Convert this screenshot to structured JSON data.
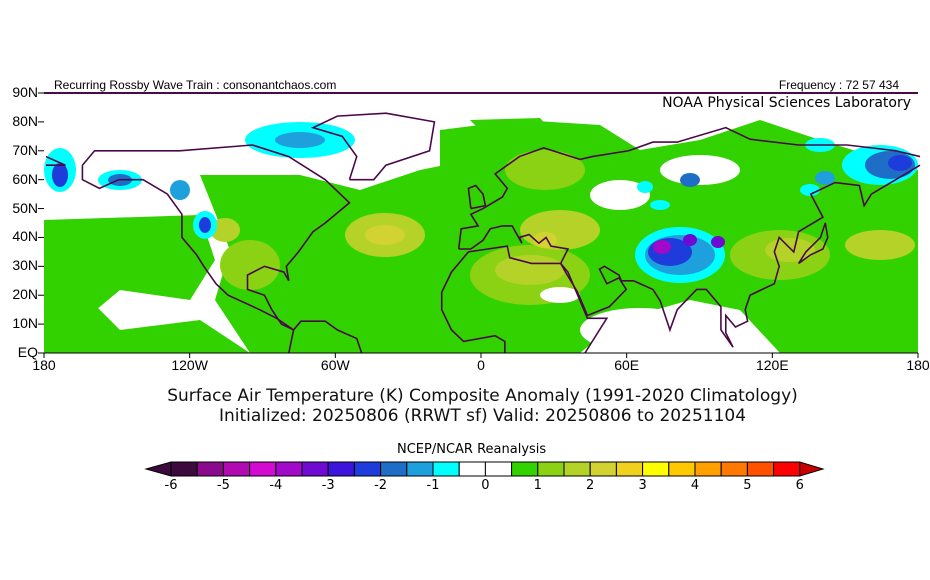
{
  "header": {
    "left_text": "Recurring Rossby Wave Train : consonantchaos.com",
    "right_text": "Frequency : 72 57 434",
    "lab_name": "NOAA Physical Sciences Laboratory"
  },
  "map": {
    "lat_labels": [
      "90N",
      "80N",
      "70N",
      "60N",
      "50N",
      "40N",
      "30N",
      "20N",
      "10N",
      "EQ"
    ],
    "lon_labels": [
      "180",
      "120W",
      "60W",
      "0",
      "60E",
      "120E",
      "180"
    ],
    "title_line1": "Surface Air Temperature (K) Composite Anomaly (1991-2020 Climatology)",
    "title_line2": "Initialized: 20250806 (RRWT sf) Valid: 20250806 to 20251104"
  },
  "colorbar": {
    "title": "NCEP/NCAR Reanalysis",
    "tick_labels": [
      "-6",
      "-5",
      "-4",
      "-3",
      "-2",
      "-1",
      "0",
      "1",
      "2",
      "3",
      "4",
      "5",
      "6"
    ],
    "colors": [
      "#3d0a3d",
      "#8b0a8b",
      "#b00ab0",
      "#d20ad2",
      "#a00ac8",
      "#6e0ad2",
      "#3c14dc",
      "#1e3cdc",
      "#1e6ec8",
      "#1ea0dc",
      "#00ffff",
      "#ffffff",
      "#ffffff",
      "#32d200",
      "#8cd214",
      "#b4d228",
      "#d2d232",
      "#f0d21e",
      "#ffff00",
      "#ffc800",
      "#ffa000",
      "#ff7800",
      "#ff5000",
      "#ff0000"
    ],
    "low_arrow_color": "#3d0a3d",
    "high_arrow_color": "#c80000"
  }
}
